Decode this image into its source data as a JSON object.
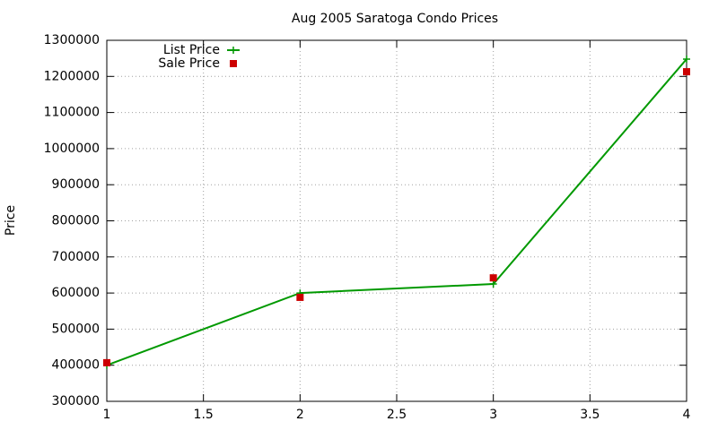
{
  "chart_data": {
    "type": "line",
    "title": "Aug 2005 Saratoga Condo Prices",
    "y_label": "Price",
    "x": [
      1,
      2,
      3,
      4
    ],
    "series": [
      {
        "name": "List Price",
        "color": "#009900",
        "line": true,
        "marker": "plus",
        "values": [
          400000,
          600000,
          625000,
          1248000
        ]
      },
      {
        "name": "Sale Price",
        "color": "#cc0000",
        "line": false,
        "marker": "square",
        "values": [
          407000,
          588000,
          642000,
          1213000
        ]
      }
    ],
    "xlim": [
      1,
      4
    ],
    "xticks": [
      1,
      1.5,
      2,
      2.5,
      3,
      3.5,
      4
    ],
    "ylim": [
      300000,
      1300000
    ],
    "yticks": [
      300000,
      400000,
      500000,
      600000,
      700000,
      800000,
      900000,
      1000000,
      1100000,
      1200000,
      1300000
    ],
    "grid": true,
    "legend": "top-left"
  }
}
